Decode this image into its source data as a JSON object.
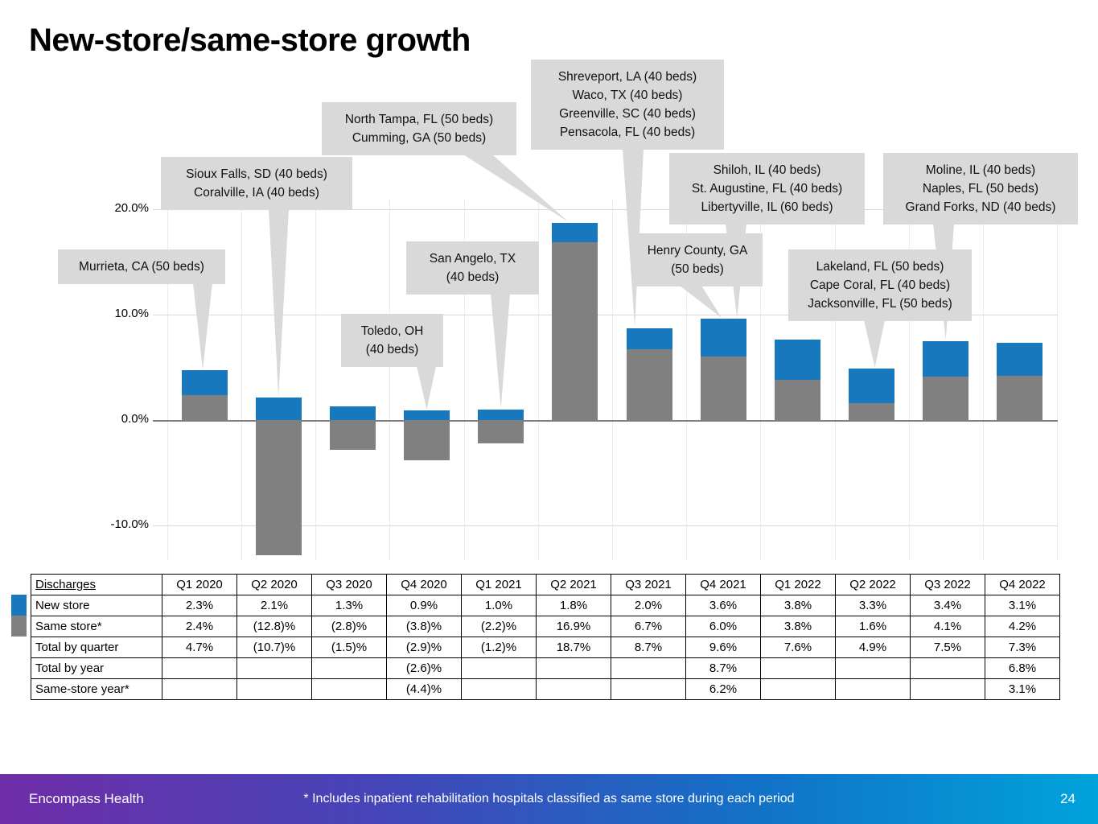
{
  "title": "New-store/same-store growth",
  "chart_data": {
    "type": "bar",
    "stacked": true,
    "title": "New-store/same-store growth",
    "categories": [
      "Q1 2020",
      "Q2 2020",
      "Q3 2020",
      "Q4 2020",
      "Q1 2021",
      "Q2 2021",
      "Q3 2021",
      "Q4 2021",
      "Q1 2022",
      "Q2 2022",
      "Q3 2022",
      "Q4 2022"
    ],
    "series": [
      {
        "name": "New store",
        "color": "#1878be",
        "values": [
          2.3,
          2.1,
          1.3,
          0.9,
          1.0,
          1.8,
          2.0,
          3.6,
          3.8,
          3.3,
          3.4,
          3.1
        ]
      },
      {
        "name": "Same store",
        "color": "#808080",
        "values": [
          2.4,
          -12.8,
          -2.8,
          -3.8,
          -2.2,
          16.9,
          6.7,
          6.0,
          3.8,
          1.6,
          4.1,
          4.2
        ]
      }
    ],
    "totals_by_quarter": [
      4.7,
      -10.7,
      -1.5,
      -2.9,
      -1.2,
      18.7,
      8.7,
      9.6,
      7.6,
      4.9,
      7.5,
      7.3
    ],
    "y_ticks": [
      "20.0%",
      "10.0%",
      "0.0%",
      "-10.0%"
    ],
    "y_tick_values": [
      20,
      10,
      0,
      -10
    ],
    "ylim": [
      -13.5,
      21
    ],
    "grid": true,
    "legend_position": "table-left"
  },
  "callouts": [
    {
      "lines": [
        "Murrieta, CA (50 beds)"
      ]
    },
    {
      "lines": [
        "Sioux Falls, SD (40 beds)",
        "Coralville, IA (40 beds)"
      ]
    },
    {
      "lines": [
        "Toledo, OH",
        "(40 beds)"
      ]
    },
    {
      "lines": [
        "North Tampa, FL (50 beds)",
        "Cumming, GA (50 beds)"
      ]
    },
    {
      "lines": [
        "San Angelo, TX",
        "(40 beds)"
      ]
    },
    {
      "lines": [
        "Shreveport, LA (40 beds)",
        "Waco, TX (40 beds)",
        "Greenville, SC (40 beds)",
        "Pensacola, FL (40 beds)"
      ]
    },
    {
      "lines": [
        "Henry County, GA",
        "(50 beds)"
      ]
    },
    {
      "lines": [
        "Shiloh, IL (40 beds)",
        "St. Augustine, FL (40 beds)",
        "Libertyville, IL (60 beds)"
      ]
    },
    {
      "lines": [
        "Lakeland, FL (50 beds)",
        "Cape Coral, FL (40 beds)",
        "Jacksonville, FL (50 beds)"
      ]
    },
    {
      "lines": [
        "Moline, IL (40 beds)",
        "Naples, FL (50 beds)",
        "Grand Forks, ND (40 beds)"
      ]
    }
  ],
  "table": {
    "row_header": "Discharges",
    "columns": [
      "Q1 2020",
      "Q2 2020",
      "Q3 2020",
      "Q4 2020",
      "Q1 2021",
      "Q2 2021",
      "Q3 2021",
      "Q4 2021",
      "Q1 2022",
      "Q2 2022",
      "Q3 2022",
      "Q4 2022"
    ],
    "rows": [
      {
        "label": "New store",
        "cells": [
          "2.3%",
          "2.1%",
          "1.3%",
          "0.9%",
          "1.0%",
          "1.8%",
          "2.0%",
          "3.6%",
          "3.8%",
          "3.3%",
          "3.4%",
          "3.1%"
        ]
      },
      {
        "label": "Same store*",
        "cells": [
          "2.4%",
          "(12.8)%",
          "(2.8)%",
          "(3.8)%",
          "(2.2)%",
          "16.9%",
          "6.7%",
          "6.0%",
          "3.8%",
          "1.6%",
          "4.1%",
          "4.2%"
        ]
      },
      {
        "label": "Total by quarter",
        "cells": [
          "4.7%",
          "(10.7)%",
          "(1.5)%",
          "(2.9)%",
          "(1.2)%",
          "18.7%",
          "8.7%",
          "9.6%",
          "7.6%",
          "4.9%",
          "7.5%",
          "7.3%"
        ]
      },
      {
        "label": "Total by year",
        "cells": [
          "",
          "",
          "",
          "(2.6)%",
          "",
          "",
          "",
          "8.7%",
          "",
          "",
          "",
          "6.8%"
        ]
      },
      {
        "label": "Same-store year*",
        "cells": [
          "",
          "",
          "",
          "(4.4)%",
          "",
          "",
          "",
          "6.2%",
          "",
          "",
          "",
          "3.1%"
        ]
      }
    ]
  },
  "legend": {
    "new_store_color": "#1878be",
    "same_store_color": "#808080"
  },
  "footer": {
    "brand": "Encompass Health",
    "note": "* Includes inpatient rehabilitation hospitals classified as same store during each period",
    "page": "24"
  }
}
